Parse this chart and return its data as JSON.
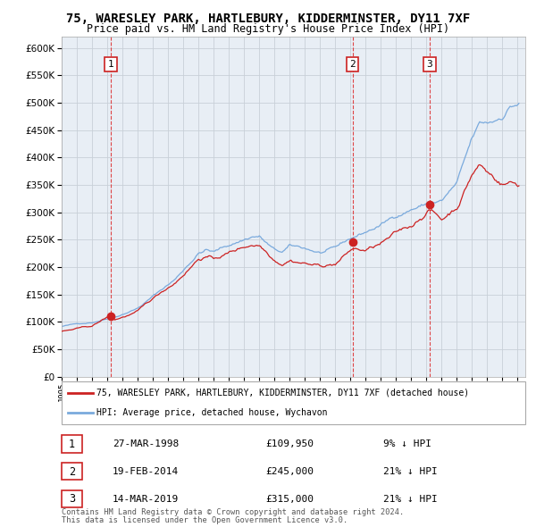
{
  "title": "75, WARESLEY PARK, HARTLEBURY, KIDDERMINSTER, DY11 7XF",
  "subtitle": "Price paid vs. HM Land Registry's House Price Index (HPI)",
  "ylim": [
    0,
    620000
  ],
  "yticks": [
    0,
    50000,
    100000,
    150000,
    200000,
    250000,
    300000,
    350000,
    400000,
    450000,
    500000,
    550000,
    600000
  ],
  "xlim_start": 1995.0,
  "xlim_end": 2025.5,
  "background_color": "#ffffff",
  "chart_bg_color": "#e8eef5",
  "grid_color": "#c8d0d8",
  "hpi_color": "#7aaadd",
  "price_color": "#cc2222",
  "dashed_color": "#dd3333",
  "sale_dates": [
    1998.22,
    2014.13,
    2019.21
  ],
  "sale_prices": [
    109950,
    245000,
    315000
  ],
  "sale_labels": [
    "1",
    "2",
    "3"
  ],
  "legend_line1": "75, WARESLEY PARK, HARTLEBURY, KIDDERMINSTER, DY11 7XF (detached house)",
  "legend_line2": "HPI: Average price, detached house, Wychavon",
  "table_data": [
    [
      "1",
      "27-MAR-1998",
      "£109,950",
      "9% ↓ HPI"
    ],
    [
      "2",
      "19-FEB-2014",
      "£245,000",
      "21% ↓ HPI"
    ],
    [
      "3",
      "14-MAR-2019",
      "£315,000",
      "21% ↓ HPI"
    ]
  ],
  "footnote1": "Contains HM Land Registry data © Crown copyright and database right 2024.",
  "footnote2": "This data is licensed under the Open Government Licence v3.0."
}
